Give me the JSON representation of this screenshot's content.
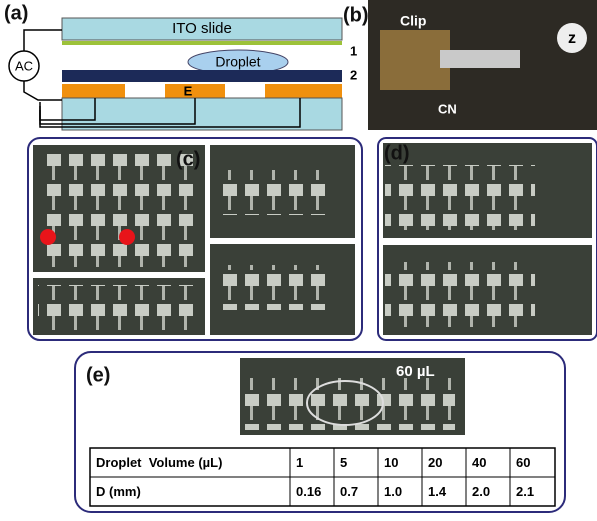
{
  "panels": {
    "a": {
      "label": "(a)",
      "ito": "ITO slide",
      "droplet": "Droplet",
      "layer1": "1",
      "layer2": "2",
      "electrode": "E",
      "source": "AC"
    },
    "b": {
      "label": "(b)",
      "clip": "Clip",
      "z": "z",
      "cn": "CN"
    },
    "c": {
      "label": "(c)"
    },
    "d": {
      "label": "(d)"
    },
    "e": {
      "label": "(e)",
      "volume_note": "60 µL",
      "table": {
        "rows": [
          [
            "Droplet  Volume (µL)",
            "1",
            "5",
            "10",
            "20",
            "40",
            "60"
          ],
          [
            "D (mm)",
            "0.16",
            "0.7",
            "1.0",
            "1.4",
            "2.0",
            "2.1"
          ]
        ]
      }
    }
  }
}
